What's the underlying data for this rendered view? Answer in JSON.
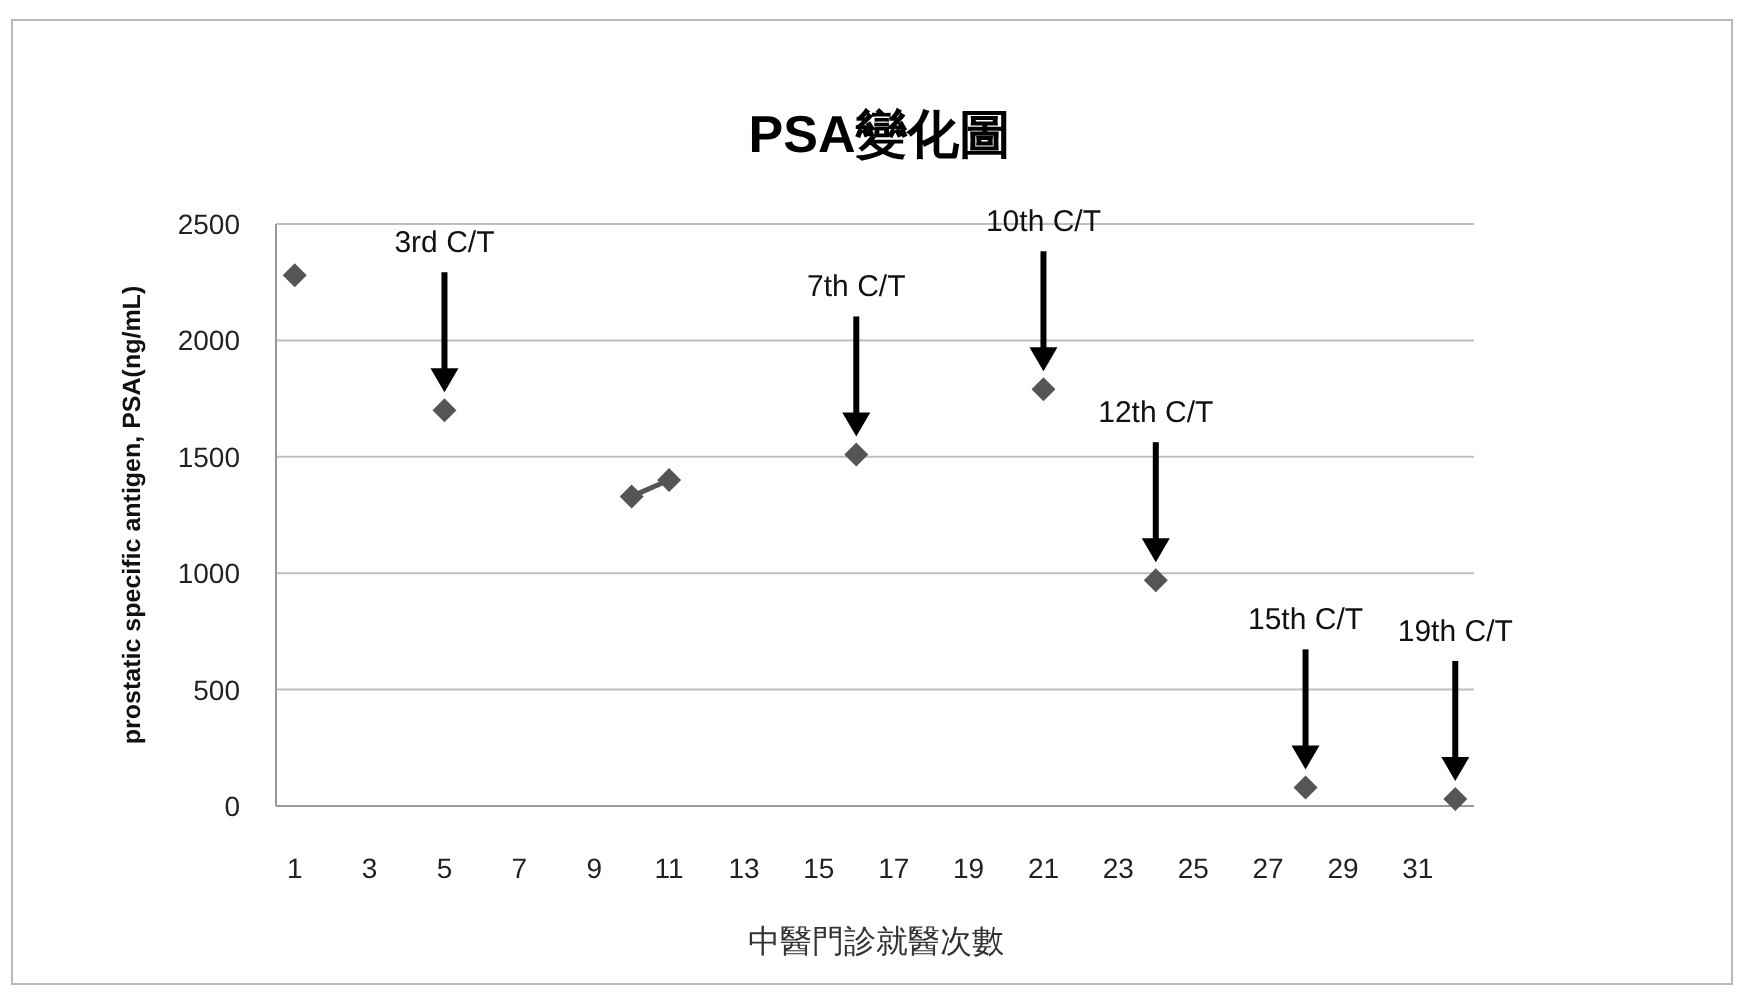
{
  "chart_data": {
    "type": "scatter",
    "title": "PSA變化圖",
    "xlabel": "中醫門診就醫次數",
    "ylabel": "prostatic specific antigen, PSA(ng/mL)",
    "x": [
      1,
      5,
      10,
      11,
      16,
      21,
      24,
      28,
      32
    ],
    "series": [
      {
        "color": "#555555",
        "values": [
          2280,
          1700,
          1330,
          1400,
          1510,
          1790,
          970,
          80,
          30
        ]
      },
      {
        "type": "line",
        "color": "#555555",
        "x": [
          10,
          11
        ],
        "values": [
          1330,
          1400
        ],
        "marker": "none"
      }
    ],
    "xlim": [
      0.5,
      32.5
    ],
    "xticks": [
      1,
      3,
      5,
      7,
      9,
      11,
      13,
      15,
      17,
      19,
      21,
      23,
      25,
      27,
      29,
      31
    ],
    "ylim": [
      0,
      2500
    ],
    "yticks": [
      0,
      500,
      1000,
      1500,
      2000,
      2500
    ],
    "grid": "y",
    "marker": "diamond",
    "line_style": "solid",
    "annotations": [
      {
        "text": "3rd C/T",
        "x": 5
      },
      {
        "text": "7th C/T",
        "x": 16
      },
      {
        "text": "10th C/T",
        "x": 21
      },
      {
        "text": "12th C/T",
        "x": 24
      },
      {
        "text": "15th C/T",
        "x": 28
      },
      {
        "text": "19th C/T",
        "x": 32
      }
    ]
  }
}
